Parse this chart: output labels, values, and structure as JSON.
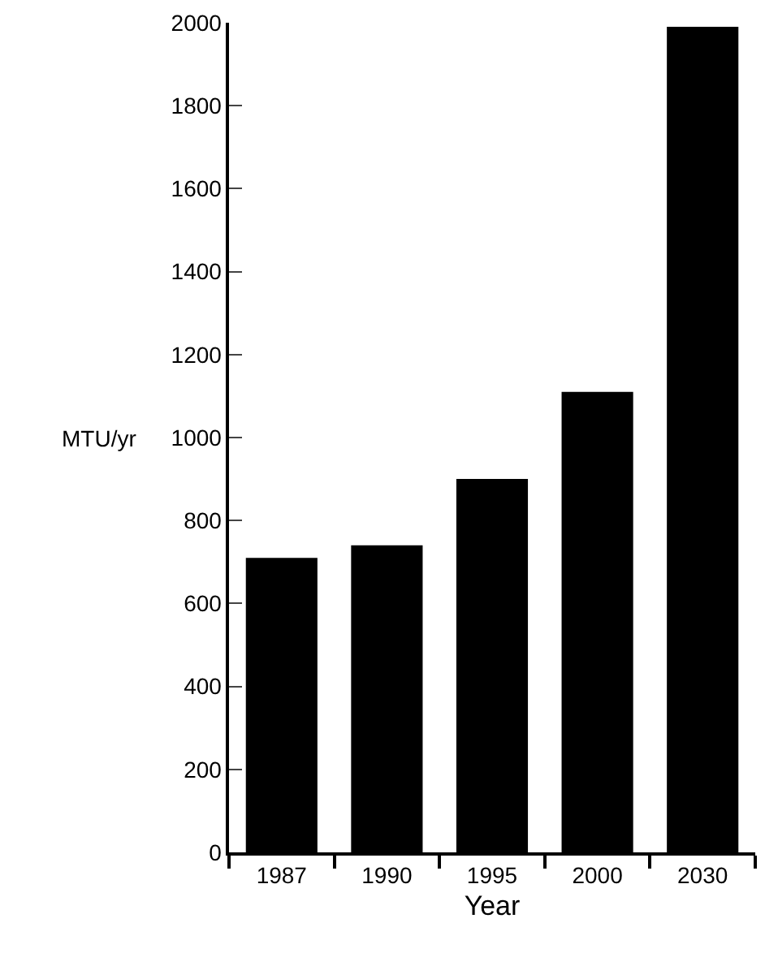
{
  "chart_data": {
    "type": "bar",
    "xlabel": "Year",
    "ylabel": "MTU/yr",
    "categories": [
      "1987",
      "1990",
      "1995",
      "2000",
      "2030"
    ],
    "values": [
      710,
      740,
      900,
      1110,
      1990
    ],
    "color": "#000000",
    "ylim": [
      0,
      2000
    ],
    "yticks": [
      0,
      200,
      400,
      600,
      800,
      1000,
      1200,
      1400,
      1600,
      1800,
      2000
    ]
  }
}
